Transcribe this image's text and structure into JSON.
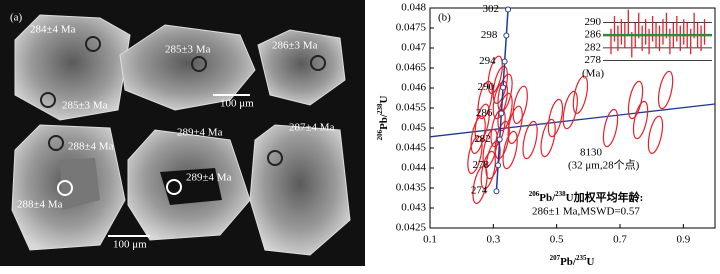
{
  "panel_a": {
    "label": "(a)",
    "ages": [
      "284±4 Ma",
      "285±3 Ma",
      "285±3 Ma",
      "286±3 Ma",
      "288±4 Ma",
      "288±4 Ma",
      "289±4 Ma",
      "289±4 Ma",
      "287±4 Ma"
    ],
    "scale_bars": [
      "100 μm",
      "100 μm"
    ]
  },
  "chart_data": {
    "type": "concordia",
    "panel_label": "(b)",
    "x_label": [
      "207",
      "Pb/",
      "235",
      "U"
    ],
    "y_label": [
      "206",
      "Pb/",
      "238",
      "U"
    ],
    "xlim": [
      0.1,
      1.0
    ],
    "ylim": [
      0.0425,
      0.048
    ],
    "xticks": [
      0.1,
      0.3,
      0.5,
      0.7,
      0.9
    ],
    "yticks": [
      0.0425,
      0.043,
      0.0435,
      0.044,
      0.0445,
      0.045,
      0.0455,
      0.046,
      0.0465,
      0.047,
      0.0475,
      0.048
    ],
    "concordia": {
      "color": "#1f3a93",
      "ages": [
        274,
        278,
        282,
        286,
        290,
        294,
        298,
        302
      ],
      "x": [
        0.3098,
        0.3149,
        0.3201,
        0.3253,
        0.3306,
        0.3358,
        0.3411,
        0.3464
      ],
      "y": [
        0.04342,
        0.044068,
        0.044716,
        0.045365,
        0.046014,
        0.046663,
        0.047313,
        0.047962
      ]
    },
    "discordia": {
      "color": "#1f3a93",
      "x": [
        0.1,
        1.0
      ],
      "y": [
        0.04478,
        0.0456
      ]
    },
    "ellipses": {
      "color": "#e8202a",
      "x": [
        0.337,
        0.353,
        0.322,
        0.337,
        0.315,
        0.328,
        0.299,
        0.284,
        0.265,
        0.252,
        0.258,
        0.306,
        0.274,
        0.369,
        0.385,
        0.473,
        0.496,
        0.543,
        0.575,
        0.67,
        0.749,
        0.765,
        0.812,
        0.844,
        0.322,
        0.29,
        0.242,
        0.416
      ],
      "y": [
        0.0454,
        0.04445,
        0.04608,
        0.04588,
        0.045,
        0.0447,
        0.0442,
        0.04395,
        0.04513,
        0.04483,
        0.04358,
        0.04633,
        0.0457,
        0.04508,
        0.04558,
        0.04475,
        0.04525,
        0.04545,
        0.04583,
        0.045,
        0.0457,
        0.0452,
        0.04483,
        0.04595,
        0.0457,
        0.0445,
        0.04433,
        0.0447
      ]
    },
    "sample": "8130",
    "sample_note": "(32 μm,28个点)",
    "result_label": [
      "206",
      "Pb/",
      "238",
      "U加权平均年龄:"
    ],
    "result": "286±1 Ma,MSWD=0.57",
    "inset": {
      "ylim": [
        276,
        292
      ],
      "yticks": [
        278,
        282,
        286,
        290
      ],
      "unit": "(Ma)",
      "mean": 286,
      "mean_color": "#2e8b3a",
      "bar_color": "#e8202a",
      "error": 4,
      "values": [
        284,
        288,
        285,
        287,
        286,
        290,
        283,
        286,
        289,
        285,
        287,
        284,
        288,
        286,
        285,
        287,
        289,
        284,
        286,
        288,
        285,
        287,
        286,
        284,
        289,
        286,
        285,
        287
      ]
    }
  }
}
